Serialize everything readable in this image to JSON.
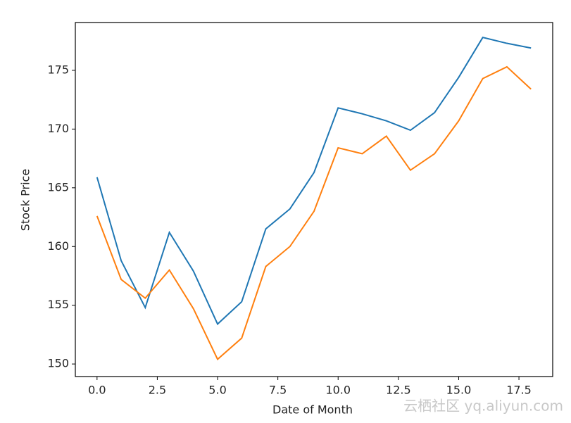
{
  "chart_data": {
    "type": "line",
    "x_label": "Date of Month",
    "y_label": "Stock Price",
    "x": [
      0,
      1,
      2,
      3,
      4,
      5,
      6,
      7,
      8,
      9,
      10,
      11,
      12,
      13,
      14,
      15,
      16,
      17,
      18
    ],
    "series": [
      {
        "color": "#1f77b4",
        "values": [
          165.9,
          158.8,
          154.8,
          161.2,
          157.9,
          153.4,
          155.3,
          161.5,
          163.2,
          166.3,
          171.8,
          171.3,
          170.7,
          169.9,
          171.4,
          174.4,
          177.8,
          177.3,
          176.9
        ]
      },
      {
        "color": "#ff7f0e",
        "values": [
          162.6,
          157.2,
          155.6,
          158.0,
          154.7,
          150.4,
          152.2,
          158.3,
          160.0,
          163.0,
          168.4,
          167.9,
          169.4,
          166.5,
          167.9,
          170.7,
          174.3,
          175.3,
          173.4
        ]
      }
    ],
    "xlim": [
      -0.9,
      18.9
    ],
    "ylim": [
      148.93,
      179.07
    ],
    "xticks": [
      {
        "value": 0,
        "label": "0.0"
      },
      2.5,
      {
        "value": 5,
        "label": "5.0"
      },
      7.5,
      {
        "value": 10,
        "label": "10.0"
      },
      12.5,
      {
        "value": 15,
        "label": "15.0"
      },
      17.5
    ],
    "yticks": [
      150,
      155,
      160,
      165,
      170,
      175
    ],
    "watermark": "云栖社区 yq.aliyun.com"
  }
}
